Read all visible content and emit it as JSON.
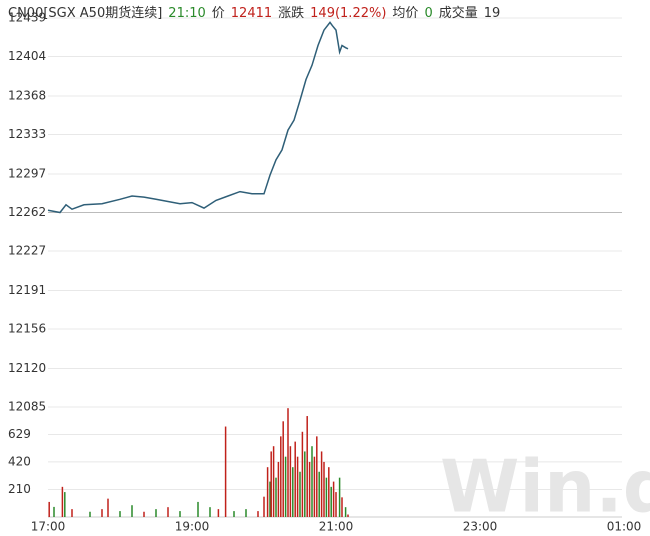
{
  "header": {
    "symbol": "CN00[SGX A50期货连续]",
    "time": "21:10",
    "price_label": "价",
    "price": "12411",
    "change_label": "涨跌",
    "change": "149(1.22%)",
    "avg_label": "均价",
    "avg": "0",
    "volume_label": "成交量",
    "volume": "19"
  },
  "watermark": "Win.d",
  "chart_data": [
    {
      "type": "line",
      "color": "#2f5f78",
      "grid": true,
      "reference_line": 12262,
      "xlim": [
        "17:00",
        "01:00"
      ],
      "ylim": [
        12085,
        12439
      ],
      "yticks": [
        12439,
        12404,
        12368,
        12333,
        12297,
        12262,
        12227,
        12191,
        12156,
        12120,
        12085
      ],
      "x": [
        "17:00",
        "17:05",
        "17:10",
        "17:15",
        "17:20",
        "17:30",
        "17:45",
        "18:00",
        "18:10",
        "18:20",
        "18:30",
        "18:40",
        "18:50",
        "19:00",
        "19:10",
        "19:20",
        "19:30",
        "19:40",
        "19:50",
        "20:00",
        "20:05",
        "20:10",
        "20:15",
        "20:20",
        "20:25",
        "20:30",
        "20:35",
        "20:40",
        "20:45",
        "20:50",
        "20:55",
        "20:57",
        "21:00",
        "21:03",
        "21:05",
        "21:08",
        "21:10"
      ],
      "values": [
        12264,
        12263,
        12262,
        12269,
        12265,
        12269,
        12270,
        12274,
        12277,
        12276,
        12274,
        12272,
        12270,
        12271,
        12266,
        12273,
        12277,
        12281,
        12279,
        12279,
        12296,
        12310,
        12319,
        12337,
        12346,
        12364,
        12383,
        12396,
        12414,
        12428,
        12435,
        12432,
        12428,
        12408,
        12414,
        12412,
        12411
      ]
    },
    {
      "type": "bar",
      "grid": true,
      "xlim": [
        "17:00",
        "01:00"
      ],
      "ylim": [
        0,
        839
      ],
      "xticks": [
        "17:00",
        "19:00",
        "21:00",
        "23:00",
        "01:00"
      ],
      "yticks": [
        210,
        420,
        629
      ],
      "x": [
        "17:01",
        "17:05",
        "17:12",
        "17:14",
        "17:20",
        "17:35",
        "17:45",
        "17:50",
        "18:00",
        "18:10",
        "18:20",
        "18:30",
        "18:40",
        "18:50",
        "19:05",
        "19:15",
        "19:22",
        "19:28",
        "19:35",
        "19:45",
        "19:55",
        "20:00",
        "20:03",
        "20:05",
        "20:06",
        "20:08",
        "20:10",
        "20:12",
        "20:14",
        "20:16",
        "20:18",
        "20:20",
        "20:22",
        "20:24",
        "20:26",
        "20:28",
        "20:30",
        "20:32",
        "20:34",
        "20:36",
        "20:38",
        "20:40",
        "20:42",
        "20:44",
        "20:46",
        "20:48",
        "20:50",
        "20:52",
        "20:54",
        "20:56",
        "20:58",
        "21:00",
        "21:03",
        "21:05",
        "21:08",
        "21:10"
      ],
      "values": [
        115,
        77,
        230,
        190,
        60,
        40,
        60,
        140,
        45,
        90,
        40,
        60,
        75,
        45,
        115,
        75,
        60,
        690,
        45,
        60,
        45,
        155,
        380,
        270,
        500,
        540,
        300,
        420,
        615,
        730,
        460,
        830,
        540,
        380,
        575,
        460,
        345,
        650,
        500,
        770,
        420,
        540,
        460,
        615,
        345,
        500,
        420,
        300,
        380,
        230,
        270,
        190,
        300,
        150,
        75,
        19
      ],
      "colors": [
        "#c0211b",
        "#2a8a2a",
        "#c0211b",
        "#2a8a2a",
        "#c0211b",
        "#2a8a2a",
        "#c0211b",
        "#c0211b",
        "#2a8a2a",
        "#2a8a2a",
        "#c0211b",
        "#2a8a2a",
        "#c0211b",
        "#2a8a2a",
        "#2a8a2a",
        "#2a8a2a",
        "#c0211b",
        "#c0211b",
        "#2a8a2a",
        "#2a8a2a",
        "#c0211b",
        "#c0211b",
        "#c0211b",
        "#2a8a2a",
        "#c0211b",
        "#c0211b",
        "#2a8a2a",
        "#c0211b",
        "#c0211b",
        "#c0211b",
        "#2a8a2a",
        "#c0211b",
        "#c0211b",
        "#2a8a2a",
        "#c0211b",
        "#c0211b",
        "#2a8a2a",
        "#c0211b",
        "#2a8a2a",
        "#c0211b",
        "#c0211b",
        "#2a8a2a",
        "#c0211b",
        "#c0211b",
        "#2a8a2a",
        "#c0211b",
        "#c0211b",
        "#2a8a2a",
        "#c0211b",
        "#2a8a2a",
        "#c0211b",
        "#c0211b",
        "#2a8a2a",
        "#c0211b",
        "#2a8a2a",
        "#c0211b"
      ]
    }
  ]
}
